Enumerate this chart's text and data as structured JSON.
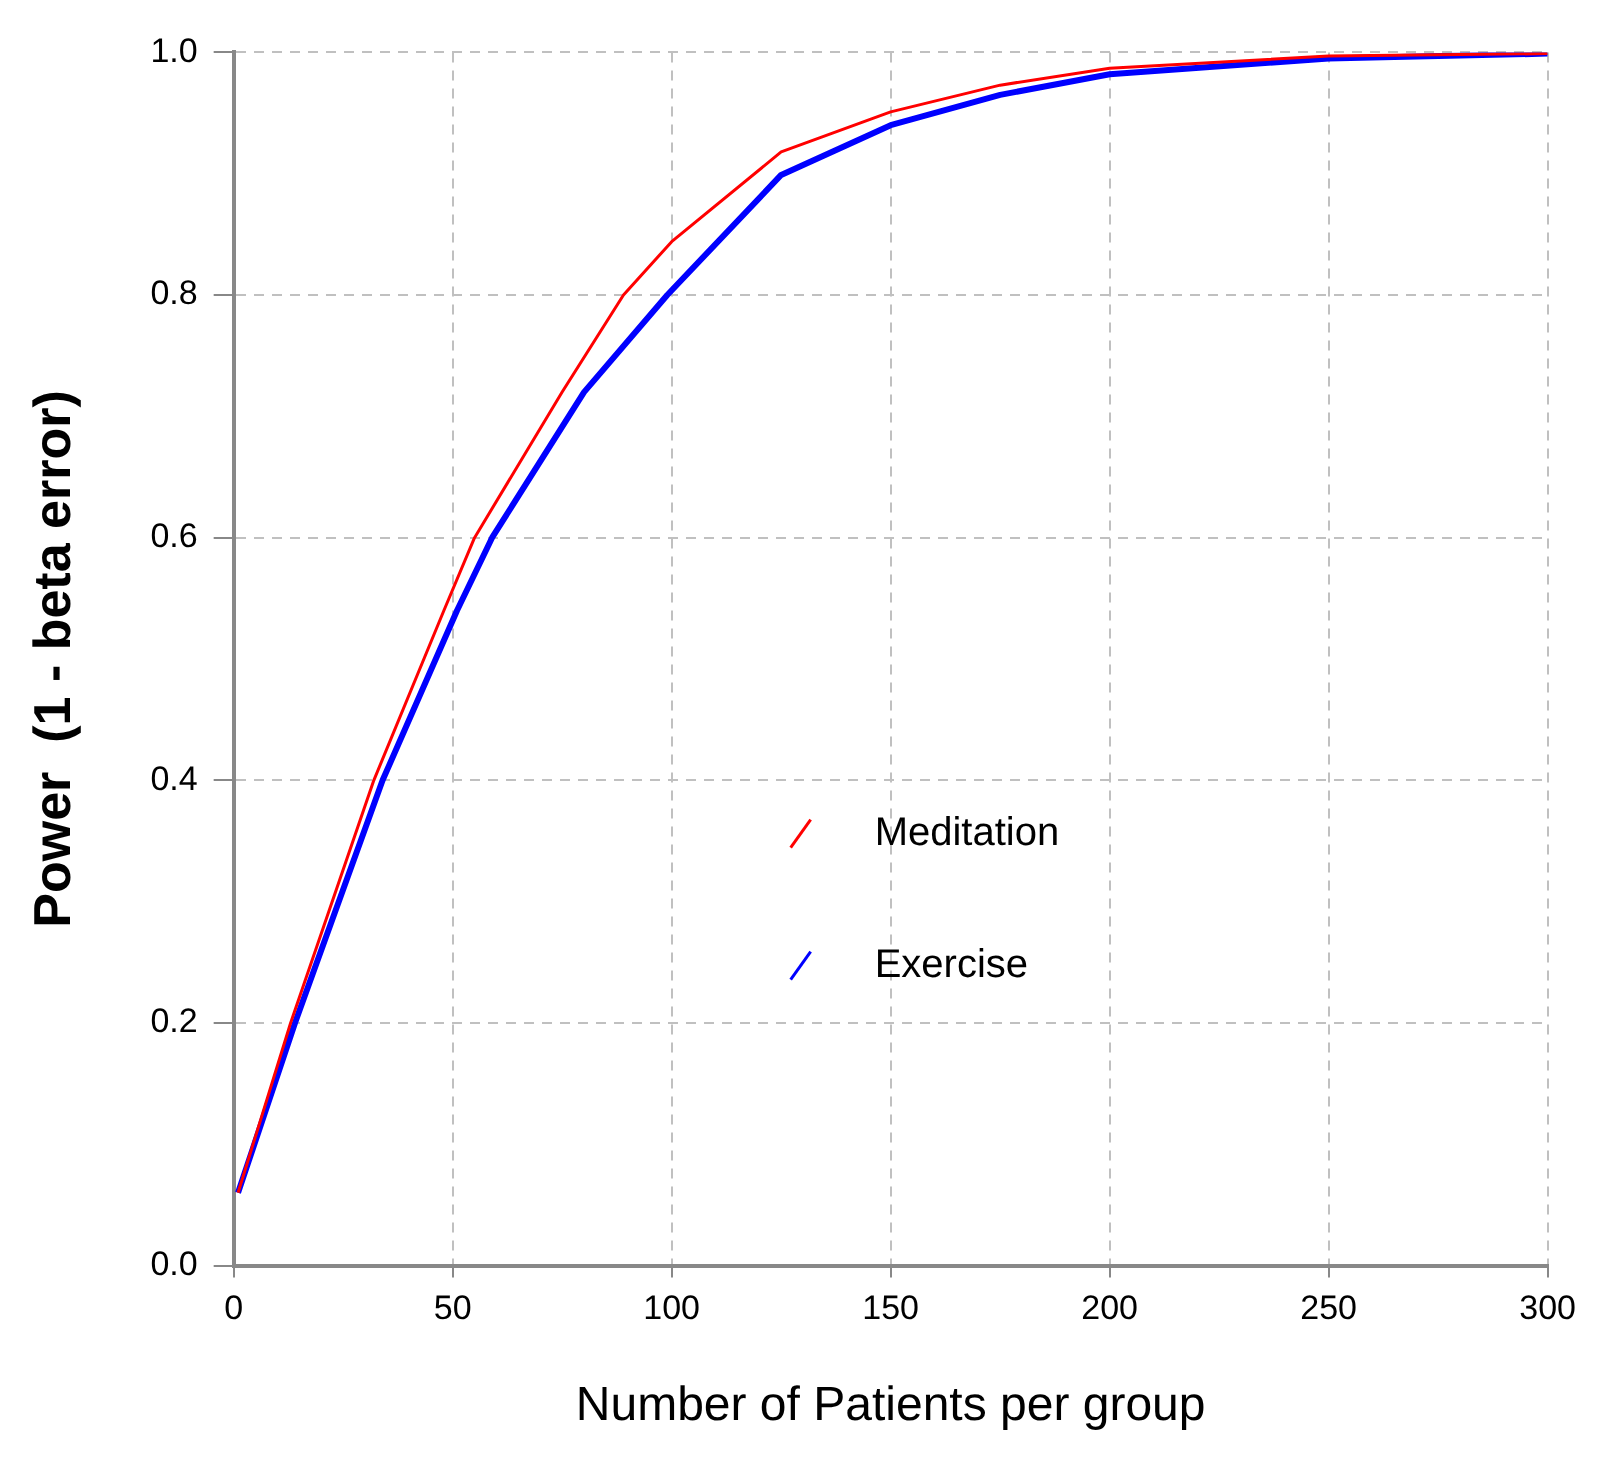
{
  "chart_data": {
    "type": "line",
    "xlabel": "Number of Patients per group",
    "ylabel": "Power  (1 - beta error)",
    "xlim": [
      0,
      300
    ],
    "ylim": [
      0,
      1
    ],
    "xticks": [
      0,
      50,
      100,
      150,
      200,
      250,
      300
    ],
    "yticks": [
      {
        "value": 0,
        "label": "0.0"
      },
      0.2,
      0.4,
      0.6,
      0.8,
      {
        "value": 1,
        "label": "1.0"
      }
    ],
    "grid": true,
    "legend": "bottom",
    "marker": "none",
    "line_style": "solid",
    "series": [
      {
        "name": "Meditation",
        "color": "#ff0000",
        "x": [
          1,
          13,
          32,
          48,
          55,
          75,
          89,
          100,
          125,
          150,
          175,
          200,
          250,
          300
        ],
        "values": [
          0.06,
          0.2,
          0.4,
          0.54,
          0.6,
          0.72,
          0.8,
          0.844,
          0.918,
          0.951,
          0.973,
          0.987,
          0.997,
          0.999
        ]
      },
      {
        "name": "Exercise",
        "color": "#0000ff",
        "x": [
          1,
          14,
          34,
          51,
          59,
          80,
          99,
          125,
          150,
          175,
          200,
          250,
          300
        ],
        "values": [
          0.06,
          0.2,
          0.4,
          0.54,
          0.6,
          0.72,
          0.8,
          0.899,
          0.94,
          0.965,
          0.982,
          0.995,
          0.999
        ]
      }
    ]
  }
}
